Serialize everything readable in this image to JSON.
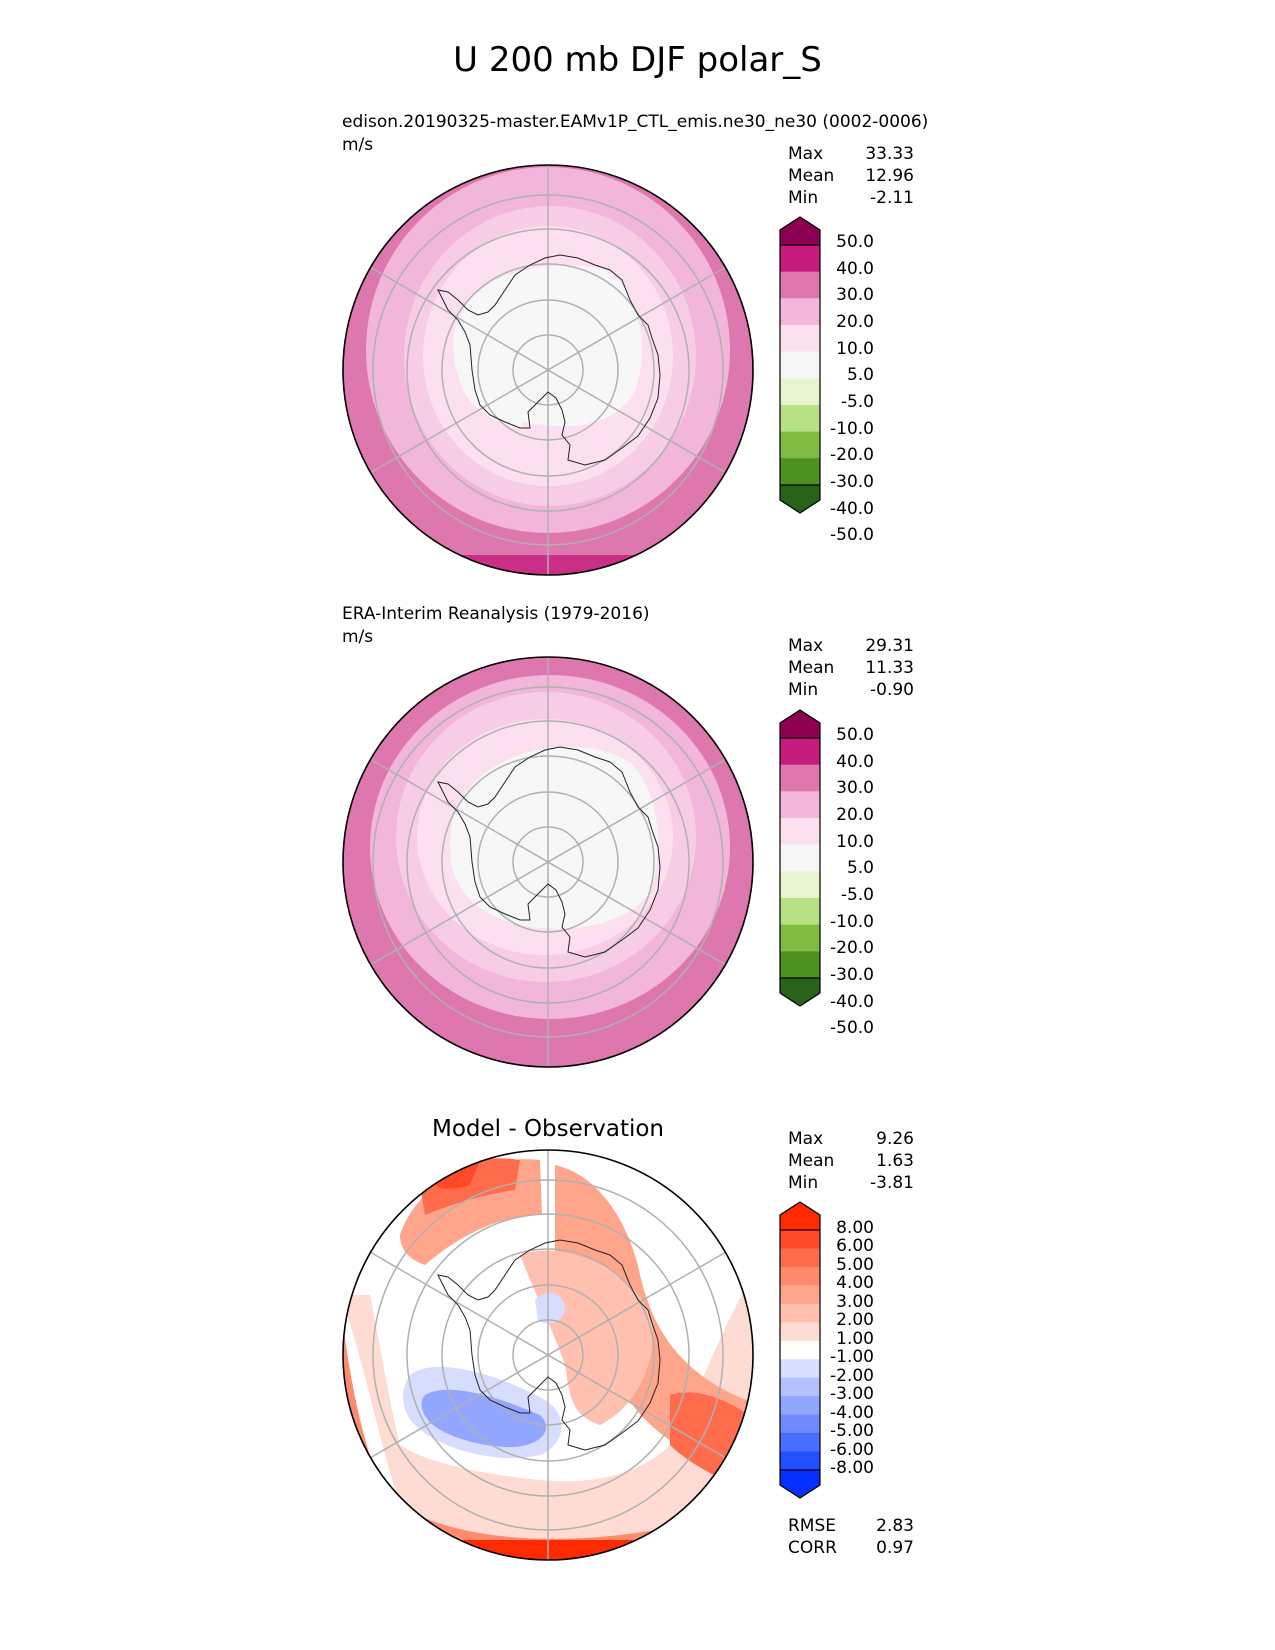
{
  "figure": {
    "title": "U 200 mb DJF polar_S"
  },
  "colors": {
    "model_obs_palette": [
      "#276419",
      "#4d9221",
      "#7fbc41",
      "#b8e186",
      "#e6f5d0",
      "#f7f7f7",
      "#fde0ef",
      "#f1b6da",
      "#de77ae",
      "#c51b7d",
      "#8e0152"
    ],
    "diff_palette": [
      "#0530ff",
      "#2350ff",
      "#4a6cff",
      "#6f89ff",
      "#93a6ff",
      "#b4c1ff",
      "#d6ddff",
      "#ffffff",
      "#ffdcd3",
      "#ffc0b0",
      "#ffa58c",
      "#ff8a6c",
      "#ff6c4c",
      "#ff4a28",
      "#ff2a00"
    ],
    "coast": "#000000",
    "grid": "#b0b0b0"
  },
  "chart_data": [
    {
      "type": "heatmap",
      "projection": "south-polar-stereographic",
      "title": "edison.20190325-master.EAMv1P_CTL_emis.ne30_ne30 (0002-0006)",
      "units": "m/s",
      "stats": [
        {
          "label": "Max",
          "value": "33.33"
        },
        {
          "label": "Mean",
          "value": "12.96"
        },
        {
          "label": "Min",
          "value": "-2.11"
        }
      ],
      "colorbar_levels": [
        "50.0",
        "40.0",
        "30.0",
        "20.0",
        "10.0",
        "5.0",
        "-5.0",
        "-10.0",
        "-20.0",
        "-30.0",
        "-40.0",
        "-50.0"
      ],
      "colorbar_extend": "both",
      "field_ring_values": [
        2,
        4,
        8,
        12,
        16,
        22,
        28
      ]
    },
    {
      "type": "heatmap",
      "projection": "south-polar-stereographic",
      "title": "ERA-Interim Reanalysis (1979-2016)",
      "units": "m/s",
      "stats": [
        {
          "label": "Max",
          "value": "29.31"
        },
        {
          "label": "Mean",
          "value": "11.33"
        },
        {
          "label": "Min",
          "value": "-0.90"
        }
      ],
      "colorbar_levels": [
        "50.0",
        "40.0",
        "30.0",
        "20.0",
        "10.0",
        "5.0",
        "-5.0",
        "-10.0",
        "-20.0",
        "-30.0",
        "-40.0",
        "-50.0"
      ],
      "colorbar_extend": "both",
      "field_ring_values": [
        2,
        3,
        7,
        12,
        16,
        22
      ]
    },
    {
      "type": "heatmap",
      "projection": "south-polar-stereographic",
      "title": "Model - Observation",
      "units": "",
      "stats": [
        {
          "label": "Max",
          "value": "9.26"
        },
        {
          "label": "Mean",
          "value": "1.63"
        },
        {
          "label": "Min",
          "value": "-3.81"
        }
      ],
      "colorbar_levels": [
        "8.00",
        "6.00",
        "5.00",
        "4.00",
        "3.00",
        "2.00",
        "1.00",
        "-1.00",
        "-2.00",
        "-3.00",
        "-4.00",
        "-5.00",
        "-6.00",
        "-8.00"
      ],
      "colorbar_extend": "both",
      "metrics": [
        {
          "label": "RMSE",
          "value": "2.83"
        },
        {
          "label": "CORR",
          "value": "0.97"
        }
      ]
    }
  ]
}
